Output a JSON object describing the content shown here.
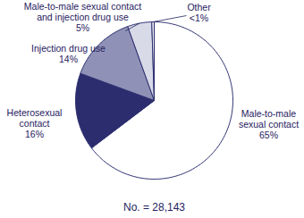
{
  "chart_data": {
    "type": "pie",
    "categories": [
      "Male-to-male sexual contact",
      "Heterosexual contact",
      "Injection drug use",
      "Male-to-male sexual contact and injection drug use",
      "Other"
    ],
    "values": [
      65,
      16,
      14,
      5,
      0.5
    ],
    "value_labels": [
      "65%",
      "16%",
      "14%",
      "5%",
      "<1%"
    ],
    "colors": [
      "#ffffff",
      "#2b2d6e",
      "#8f91b6",
      "#d9dae8",
      "#eeeef5"
    ],
    "data_labels": true,
    "annotation": "No. = 28,143"
  }
}
